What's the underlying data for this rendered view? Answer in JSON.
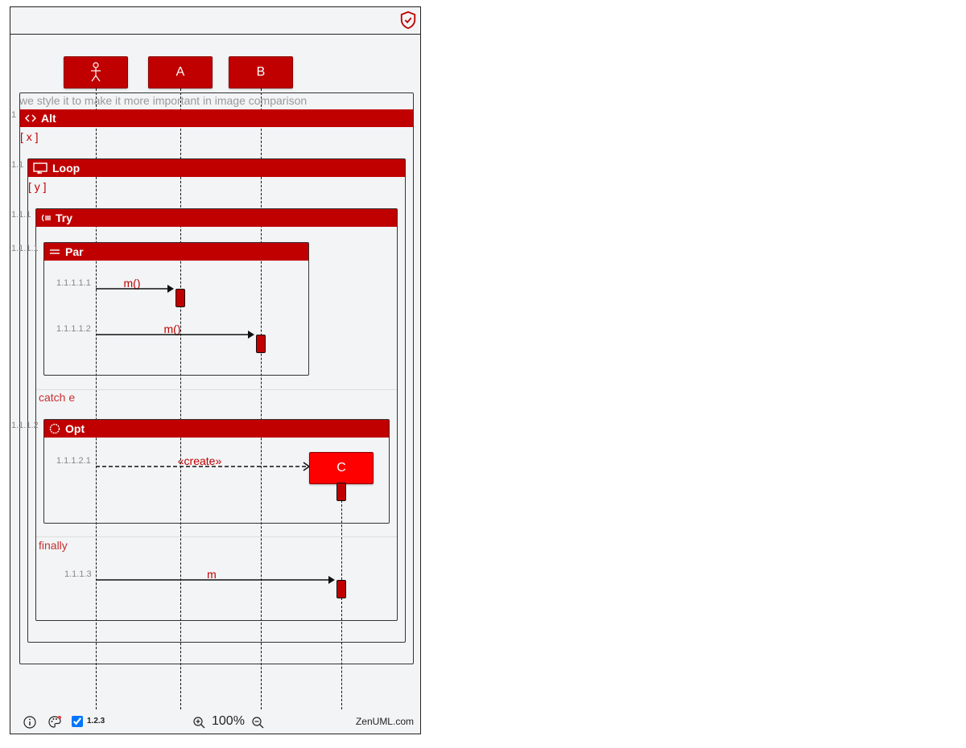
{
  "toolbar": {
    "shield_icon": "shield-check-icon"
  },
  "diagram": {
    "comment": "we style it to make it more important in image comparison",
    "participants": [
      {
        "id": "actor",
        "label": "",
        "icon": "stick-figure-icon"
      },
      {
        "id": "A",
        "label": "A"
      },
      {
        "id": "B",
        "label": "B"
      },
      {
        "id": "C",
        "label": "C"
      }
    ],
    "fragments": {
      "alt": {
        "seq": "1",
        "title": "Alt",
        "condition": "[ x ]"
      },
      "loop": {
        "seq": "1.1",
        "title": "Loop",
        "condition": "[ y ]"
      },
      "try": {
        "seq": "1.1.1",
        "title": "Try",
        "catch_label": "catch  e",
        "finally_label": "finally"
      },
      "par": {
        "seq": "1.1.1.1",
        "title": "Par"
      },
      "opt": {
        "seq": "1.1.1.2",
        "title": "Opt"
      }
    },
    "messages": [
      {
        "seq": "1.1.1.1.1",
        "label": "m()",
        "from": "actor",
        "to": "A"
      },
      {
        "seq": "1.1.1.1.2",
        "label": "m()",
        "from": "actor",
        "to": "B"
      },
      {
        "seq": "1.1.1.2.1",
        "label": "«create»",
        "from": "actor",
        "to": "C",
        "type": "create"
      },
      {
        "seq": "1.1.1.3",
        "label": "m",
        "from": "actor",
        "to": "C"
      }
    ]
  },
  "footer": {
    "info_icon": "info-icon",
    "theme_icon": "palette-icon",
    "numbering_checked": true,
    "numbering_label": "1.2.3",
    "zoom_in_icon": "zoom-in-icon",
    "zoom_level": "100%",
    "zoom_out_icon": "zoom-out-icon",
    "brand": "ZenUML.com"
  },
  "colors": {
    "accent": "#c00000",
    "created_participant": "#ff0000",
    "background": "#f3f4f6"
  }
}
